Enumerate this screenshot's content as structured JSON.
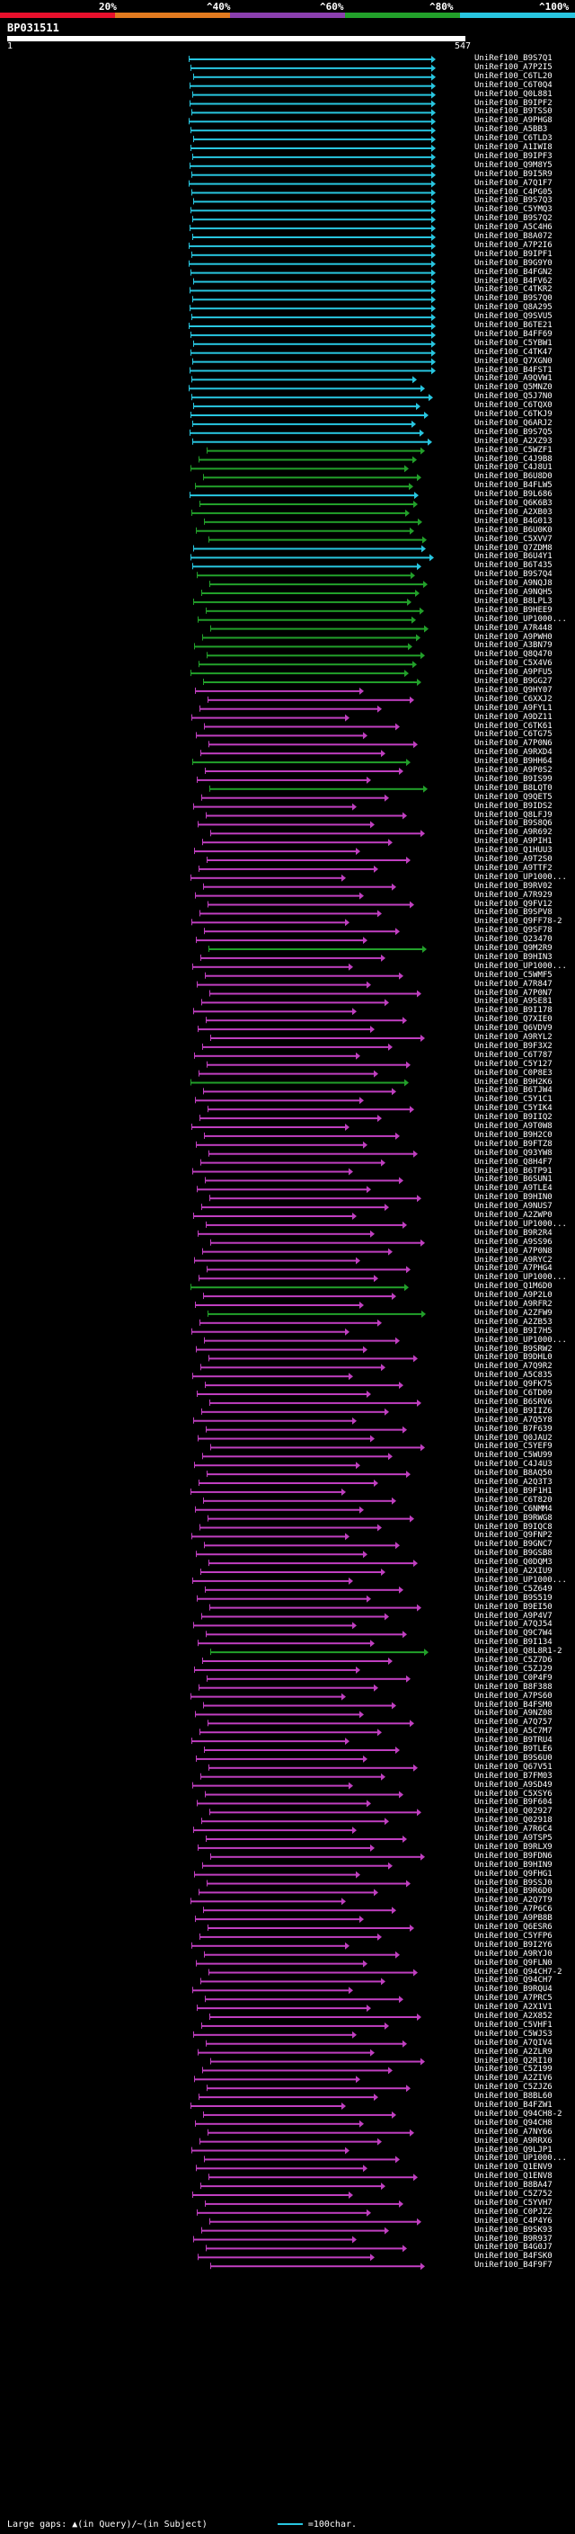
{
  "scale": {
    "percents": [
      "20%",
      "^40%",
      "^60%",
      "^80%",
      "^100%"
    ],
    "colors": [
      "#e8102c",
      "#e27a1f",
      "#8b3fae",
      "#22a02a",
      "#28c6e0"
    ]
  },
  "query": {
    "name": "BP031511",
    "start": "1",
    "end": "547"
  },
  "footer": {
    "text": "Large gaps: ▲(in Query)/~(in Subject)",
    "scale_text": "=100char."
  },
  "colors": {
    "cyan": "#28c6e0",
    "green": "#22a02a",
    "magenta": "#c03fc0",
    "red": "#e8102c"
  },
  "hits": [
    [
      "UniRef100_B9S7Q1",
      "c"
    ],
    [
      "UniRef100_A7P2I5",
      "c"
    ],
    [
      "UniRef100_C6TL20",
      "c"
    ],
    [
      "UniRef100_C6T0Q4",
      "c"
    ],
    [
      "UniRef100_Q0L881",
      "c"
    ],
    [
      "UniRef100_B9IPF2",
      "c"
    ],
    [
      "UniRef100_B9TSS0",
      "c"
    ],
    [
      "UniRef100_A9PHG8",
      "c"
    ],
    [
      "UniRef100_A5BB3",
      "c"
    ],
    [
      "UniRef100_C6TLD3",
      "c"
    ],
    [
      "UniRef100_A1IWI8",
      "c"
    ],
    [
      "UniRef100_B9IPF3",
      "c"
    ],
    [
      "UniRef100_Q9M8Y5",
      "c"
    ],
    [
      "UniRef100_B9I5R9",
      "c"
    ],
    [
      "UniRef100_A7Q1F7",
      "c"
    ],
    [
      "UniRef100_C4PG05",
      "c"
    ],
    [
      "UniRef100_B9S7Q3",
      "c"
    ],
    [
      "UniRef100_C5YMQ3",
      "c"
    ],
    [
      "UniRef100_B9S7Q2",
      "c"
    ],
    [
      "UniRef100_A5C4H6",
      "c"
    ],
    [
      "UniRef100_B8A072",
      "c"
    ],
    [
      "UniRef100_A7P2I6",
      "c"
    ],
    [
      "UniRef100_B9IPF1",
      "c"
    ],
    [
      "UniRef100_B9G9Y0",
      "c"
    ],
    [
      "UniRef100_B4FGN2",
      "c"
    ],
    [
      "UniRef100_B4FV62",
      "c"
    ],
    [
      "UniRef100_C4TKR2",
      "c"
    ],
    [
      "UniRef100_B9S7Q0",
      "c"
    ],
    [
      "UniRef100_Q8A295",
      "c"
    ],
    [
      "UniRef100_Q9SVU5",
      "c"
    ],
    [
      "UniRef100_B6TE21",
      "c"
    ],
    [
      "UniRef100_B4FF69",
      "c"
    ],
    [
      "UniRef100_C5YBW1",
      "c"
    ],
    [
      "UniRef100_C4TK47",
      "c"
    ],
    [
      "UniRef100_Q7XGN0",
      "c"
    ],
    [
      "UniRef100_B4FST1",
      "c"
    ],
    [
      "UniRef100_A9QVW1",
      "c"
    ],
    [
      "UniRef100_Q5MNZ0",
      "c"
    ],
    [
      "UniRef100_Q5J7N0",
      "c"
    ],
    [
      "UniRef100_C6TQX0",
      "c"
    ],
    [
      "UniRef100_C6TKJ9",
      "c"
    ],
    [
      "UniRef100_Q6ARJ2",
      "c"
    ],
    [
      "UniRef100_B9S7Q5",
      "c"
    ],
    [
      "UniRef100_A2XZ93",
      "c"
    ],
    [
      "UniRef100_C5WZF1",
      "g"
    ],
    [
      "UniRef100_C4J9B8",
      "g"
    ],
    [
      "UniRef100_C4J8U1",
      "g"
    ],
    [
      "UniRef100_B6U8D0",
      "g"
    ],
    [
      "UniRef100_B4FLW5",
      "g"
    ],
    [
      "UniRef100_B9L686",
      "c"
    ],
    [
      "UniRef100_Q6K6B3",
      "g"
    ],
    [
      "UniRef100_A2XB03",
      "g"
    ],
    [
      "UniRef100_B4G013",
      "g"
    ],
    [
      "UniRef100_B6U0K0",
      "g"
    ],
    [
      "UniRef100_C5XVV7",
      "g"
    ],
    [
      "UniRef100_Q7ZDM8",
      "c"
    ],
    [
      "UniRef100_B6U4Y1",
      "c"
    ],
    [
      "UniRef100_B6T435",
      "c"
    ],
    [
      "UniRef100_B9S7Q4",
      "g"
    ],
    [
      "UniRef100_A9NQJ8",
      "g"
    ],
    [
      "UniRef100_A9NQH5",
      "g"
    ],
    [
      "UniRef100_B8LPL3",
      "g"
    ],
    [
      "UniRef100_B9HEE9",
      "g"
    ],
    [
      "UniRef100_UP1000...",
      "g"
    ],
    [
      "UniRef100_A7R448",
      "g"
    ],
    [
      "UniRef100_A9PWH0",
      "g"
    ],
    [
      "UniRef100_A3BN79",
      "g"
    ],
    [
      "UniRef100_Q8Q470",
      "g"
    ],
    [
      "UniRef100_C5X4V6",
      "g"
    ],
    [
      "UniRef100_A9PFU5",
      "g"
    ],
    [
      "UniRef100_B9GG27",
      "g"
    ],
    [
      "UniRef100_Q9HY07",
      "m"
    ],
    [
      "UniRef100_C6XXJ2",
      "m"
    ],
    [
      "UniRef100_A9FYL1",
      "m"
    ],
    [
      "UniRef100_A9DZ11",
      "m"
    ],
    [
      "UniRef100_C6TK61",
      "m"
    ],
    [
      "UniRef100_C6TG75",
      "m"
    ],
    [
      "UniRef100_A7P0N6",
      "m"
    ],
    [
      "UniRef100_A9RXD4",
      "m"
    ],
    [
      "UniRef100_B9HH64",
      "g"
    ],
    [
      "UniRef100_A9P0S2",
      "m"
    ],
    [
      "UniRef100_B9IS99",
      "m"
    ],
    [
      "UniRef100_B8LQT0",
      "g"
    ],
    [
      "UniRef100_Q9QET5",
      "m"
    ],
    [
      "UniRef100_B9IDS2",
      "m"
    ],
    [
      "UniRef100_Q8LFJ9",
      "m"
    ],
    [
      "UniRef100_B9S8Q6",
      "m"
    ],
    [
      "UniRef100_A9R692",
      "m"
    ],
    [
      "UniRef100_A9PIH1",
      "m"
    ],
    [
      "UniRef100_Q1HUU3",
      "m"
    ],
    [
      "UniRef100_A9T2S0",
      "m"
    ],
    [
      "UniRef100_A9TTF2",
      "m"
    ],
    [
      "UniRef100_UP1000...",
      "m"
    ],
    [
      "UniRef100_B9RV02",
      "m"
    ],
    [
      "UniRef100_A7R929",
      "m"
    ],
    [
      "UniRef100_Q9FV12",
      "m"
    ],
    [
      "UniRef100_B9SPV8",
      "m"
    ],
    [
      "UniRef100_Q9FF78-2",
      "m"
    ],
    [
      "UniRef100_Q9SF78",
      "m"
    ],
    [
      "UniRef100_Q23470",
      "m"
    ],
    [
      "UniRef100_Q9M2R9",
      "g"
    ],
    [
      "UniRef100_B9HIN3",
      "m"
    ],
    [
      "UniRef100_UP1000...",
      "m"
    ],
    [
      "UniRef100_C5WMF5",
      "m"
    ],
    [
      "UniRef100_A7R847",
      "m"
    ],
    [
      "UniRef100_A7P0N7",
      "m"
    ],
    [
      "UniRef100_A9SE81",
      "m"
    ],
    [
      "UniRef100_B9I178",
      "m"
    ],
    [
      "UniRef100_Q7XIE0",
      "m"
    ],
    [
      "UniRef100_Q6VDV9",
      "m"
    ],
    [
      "UniRef100_A9RYL2",
      "m"
    ],
    [
      "UniRef100_B9F3X2",
      "m"
    ],
    [
      "UniRef100_C6T787",
      "m"
    ],
    [
      "UniRef100_C5Y127",
      "m"
    ],
    [
      "UniRef100_C0P8E3",
      "m"
    ],
    [
      "UniRef100_B9H2K6",
      "g"
    ],
    [
      "UniRef100_B6TJW4",
      "m"
    ],
    [
      "UniRef100_C5Y1C1",
      "m"
    ],
    [
      "UniRef100_C5YIK4",
      "m"
    ],
    [
      "UniRef100_B9IIQ2",
      "m"
    ],
    [
      "UniRef100_A9T0W8",
      "m"
    ],
    [
      "UniRef100_B9H2C0",
      "m"
    ],
    [
      "UniRef100_B9FTZ8",
      "m"
    ],
    [
      "UniRef100_Q93YW8",
      "m"
    ],
    [
      "UniRef100_Q8H4F7",
      "m"
    ],
    [
      "UniRef100_B6TP91",
      "m"
    ],
    [
      "UniRef100_B6SUN1",
      "m"
    ],
    [
      "UniRef100_A9TLE4",
      "m"
    ],
    [
      "UniRef100_B9HIN0",
      "m"
    ],
    [
      "UniRef100_A9NUS7",
      "m"
    ],
    [
      "UniRef100_A2ZWP0",
      "m"
    ],
    [
      "UniRef100_UP1000...",
      "m"
    ],
    [
      "UniRef100_B9R2R4",
      "m"
    ],
    [
      "UniRef100_A9SS96",
      "m"
    ],
    [
      "UniRef100_A7P0N8",
      "m"
    ],
    [
      "UniRef100_A9RYC2",
      "m"
    ],
    [
      "UniRef100_A7PHG4",
      "m"
    ],
    [
      "UniRef100_UP1000...",
      "m"
    ],
    [
      "UniRef100_Q1M6D0",
      "g"
    ],
    [
      "UniRef100_A9P2L0",
      "m"
    ],
    [
      "UniRef100_A9RFR2",
      "m"
    ],
    [
      "UniRef100_A2ZFW9",
      "g"
    ],
    [
      "UniRef100_A2ZB53",
      "m"
    ],
    [
      "UniRef100_B9I7H5",
      "m"
    ],
    [
      "UniRef100_UP1000...",
      "m"
    ],
    [
      "UniRef100_B9SRW2",
      "m"
    ],
    [
      "UniRef100_B9DHL0",
      "m"
    ],
    [
      "UniRef100_A7Q9R2",
      "m"
    ],
    [
      "UniRef100_A5C835",
      "m"
    ],
    [
      "UniRef100_Q9FK75",
      "m"
    ],
    [
      "UniRef100_C6TD09",
      "m"
    ],
    [
      "UniRef100_B6SRV6",
      "m"
    ],
    [
      "UniRef100_B9IIZ6",
      "m"
    ],
    [
      "UniRef100_A7Q5Y8",
      "m"
    ],
    [
      "UniRef100_B7F639",
      "m"
    ],
    [
      "UniRef100_Q0JAU2",
      "m"
    ],
    [
      "UniRef100_C5YEF9",
      "m"
    ],
    [
      "UniRef100_C5WU99",
      "m"
    ],
    [
      "UniRef100_C4J4U3",
      "m"
    ],
    [
      "UniRef100_B8AQ50",
      "m"
    ],
    [
      "UniRef100_A2Q3T3",
      "m"
    ],
    [
      "UniRef100_B9F1H1",
      "m"
    ],
    [
      "UniRef100_C6T820",
      "m"
    ],
    [
      "UniRef100_C6NMM4",
      "m"
    ],
    [
      "UniRef100_B9RWG8",
      "m"
    ],
    [
      "UniRef100_B9IQC8",
      "m"
    ],
    [
      "UniRef100_Q9FNP2",
      "m"
    ],
    [
      "UniRef100_B9GNC7",
      "m"
    ],
    [
      "UniRef100_B9GSB8",
      "m"
    ],
    [
      "UniRef100_Q0DQM3",
      "m"
    ],
    [
      "UniRef100_A2XIU9",
      "m"
    ],
    [
      "UniRef100_UP1000...",
      "m"
    ],
    [
      "UniRef100_C5Z649",
      "m"
    ],
    [
      "UniRef100_B9S519",
      "m"
    ],
    [
      "UniRef100_B9EI50",
      "m"
    ],
    [
      "UniRef100_A9P4V7",
      "m"
    ],
    [
      "UniRef100_A7QJ54",
      "m"
    ],
    [
      "UniRef100_Q9C7W4",
      "m"
    ],
    [
      "UniRef100_B9I134",
      "m"
    ],
    [
      "UniRef100_Q8L8R1-2",
      "g"
    ],
    [
      "UniRef100_C5Z7D6",
      "m"
    ],
    [
      "UniRef100_C5ZJ29",
      "m"
    ],
    [
      "UniRef100_C0P4F9",
      "m"
    ],
    [
      "UniRef100_B8F388",
      "m"
    ],
    [
      "UniRef100_A7PS60",
      "m"
    ],
    [
      "UniRef100_B4FSM0",
      "m"
    ],
    [
      "UniRef100_A9NZ08",
      "m"
    ],
    [
      "UniRef100_A7Q757",
      "m"
    ],
    [
      "UniRef100_A5C7M7",
      "m"
    ],
    [
      "UniRef100_B9TRU4",
      "m"
    ],
    [
      "UniRef100_B9TLE6",
      "m"
    ],
    [
      "UniRef100_B9S6U0",
      "m"
    ],
    [
      "UniRef100_Q67V51",
      "m"
    ],
    [
      "UniRef100_B7FM03",
      "m"
    ],
    [
      "UniRef100_A9SD49",
      "m"
    ],
    [
      "UniRef100_C5XSY6",
      "m"
    ],
    [
      "UniRef100_B9F604",
      "m"
    ],
    [
      "UniRef100_Q02927",
      "m"
    ],
    [
      "UniRef100_Q02918",
      "m"
    ],
    [
      "UniRef100_A7R6C4",
      "m"
    ],
    [
      "UniRef100_A9TSP5",
      "m"
    ],
    [
      "UniRef100_B9RLX9",
      "m"
    ],
    [
      "UniRef100_B9FDN6",
      "m"
    ],
    [
      "UniRef100_B9HIN9",
      "m"
    ],
    [
      "UniRef100_Q9FHG1",
      "m"
    ],
    [
      "UniRef100_B9SSJ0",
      "m"
    ],
    [
      "UniRef100_B9R6D0",
      "m"
    ],
    [
      "UniRef100_A2Q7T9",
      "m"
    ],
    [
      "UniRef100_A7P6C6",
      "m"
    ],
    [
      "UniRef100_A9PB8B",
      "m"
    ],
    [
      "UniRef100_Q6ESR6",
      "m"
    ],
    [
      "UniRef100_C5YFP6",
      "m"
    ],
    [
      "UniRef100_B9I2Y6",
      "m"
    ],
    [
      "UniRef100_A9RYJ0",
      "m"
    ],
    [
      "UniRef100_Q9FLN0",
      "m"
    ],
    [
      "UniRef100_Q94CH7-2",
      "m"
    ],
    [
      "UniRef100_Q94CH7",
      "m"
    ],
    [
      "UniRef100_B9RQU4",
      "m"
    ],
    [
      "UniRef100_A7PRC5",
      "m"
    ],
    [
      "UniRef100_A2X1V1",
      "m"
    ],
    [
      "UniRef100_A2X852",
      "m"
    ],
    [
      "UniRef100_C5VHF1",
      "m"
    ],
    [
      "UniRef100_C5WJS3",
      "m"
    ],
    [
      "UniRef100_A7QIV4",
      "m"
    ],
    [
      "UniRef100_A2ZLR9",
      "m"
    ],
    [
      "UniRef100_Q2RI10",
      "m"
    ],
    [
      "UniRef100_C5Z199",
      "m"
    ],
    [
      "UniRef100_A2ZIV6",
      "m"
    ],
    [
      "UniRef100_C5ZJZ6",
      "m"
    ],
    [
      "UniRef100_B8BL60",
      "m"
    ],
    [
      "UniRef100_B4FZW1",
      "m"
    ],
    [
      "UniRef100_Q94CH8-2",
      "m"
    ],
    [
      "UniRef100_Q94CH8",
      "m"
    ],
    [
      "UniRef100_A7NY66",
      "m"
    ],
    [
      "UniRef100_A9RRX6",
      "m"
    ],
    [
      "UniRef100_Q9LJP1",
      "m"
    ],
    [
      "UniRef100_UP1000...",
      "m"
    ],
    [
      "UniRef100_Q1ENV9",
      "m"
    ],
    [
      "UniRef100_Q1ENV8",
      "m"
    ],
    [
      "UniRef100_B8BA47",
      "m"
    ],
    [
      "UniRef100_C5Z752",
      "m"
    ],
    [
      "UniRef100_C5YVH7",
      "m"
    ],
    [
      "UniRef100_C0PJZ2",
      "m"
    ],
    [
      "UniRef100_C4P4Y6",
      "m"
    ],
    [
      "UniRef100_B9SK93",
      "m"
    ],
    [
      "UniRef100_B9R937",
      "m"
    ],
    [
      "UniRef100_B4G0J7",
      "m"
    ],
    [
      "UniRef100_B4FSK0",
      "m"
    ],
    [
      "UniRef100_B4F9F7",
      "m"
    ]
  ]
}
